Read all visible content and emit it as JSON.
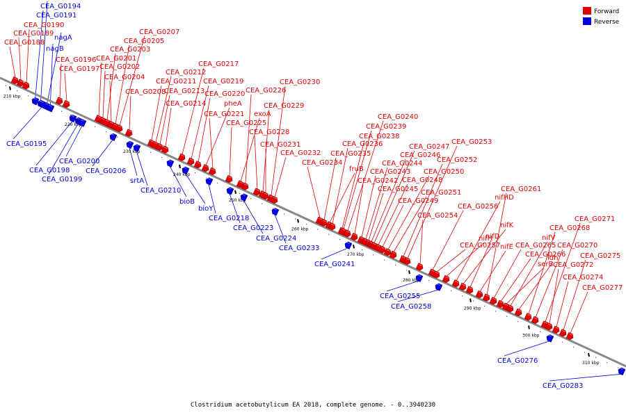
{
  "caption": "Clostridium acetobutylicum EA 2018, complete genome. - 0..3940230",
  "legend": [
    {
      "label": "Forward",
      "color": "#e00000"
    },
    {
      "label": "Reverse",
      "color": "#0000e0"
    }
  ],
  "colors": {
    "forward": "#e00000",
    "reverse": "#0000e0",
    "backbone": "#888888"
  },
  "tick_labels": [
    "210 kbp",
    "220 kbp",
    "230 kbp",
    "240 kbp",
    "250 kbp",
    "260 kbp",
    "270 kbp",
    "280 kbp",
    "290 kbp",
    "300 kbp",
    "310 kbp"
  ],
  "genes": [
    {
      "name": "CEA_G0188",
      "strand": "forward"
    },
    {
      "name": "CEA_G0189",
      "strand": "forward"
    },
    {
      "name": "CEA_G0190",
      "strand": "forward"
    },
    {
      "name": "CEA_G0191",
      "strand": "reverse"
    },
    {
      "name": "CEA_G0194",
      "strand": "reverse"
    },
    {
      "name": "nagA",
      "strand": "reverse"
    },
    {
      "name": "nagB",
      "strand": "reverse"
    },
    {
      "name": "CEA_G0195",
      "strand": "reverse"
    },
    {
      "name": "CEA_G0196",
      "strand": "forward"
    },
    {
      "name": "CEA_G0197",
      "strand": "forward"
    },
    {
      "name": "CEA_G0198",
      "strand": "reverse"
    },
    {
      "name": "CEA_G0199",
      "strand": "reverse"
    },
    {
      "name": "CEA_G0200",
      "strand": "reverse"
    },
    {
      "name": "CEA_G0201",
      "strand": "forward"
    },
    {
      "name": "CEA_G0202",
      "strand": "forward"
    },
    {
      "name": "CEA_G0203",
      "strand": "forward"
    },
    {
      "name": "CEA_G0204",
      "strand": "forward"
    },
    {
      "name": "CEA_G0205",
      "strand": "forward"
    },
    {
      "name": "CEA_G0206",
      "strand": "reverse"
    },
    {
      "name": "CEA_G0207",
      "strand": "forward"
    },
    {
      "name": "CEA_G0208",
      "strand": "forward"
    },
    {
      "name": "srtA",
      "strand": "reverse"
    },
    {
      "name": "CEA_G0210",
      "strand": "reverse"
    },
    {
      "name": "CEA_G0211",
      "strand": "forward"
    },
    {
      "name": "CEA_G0212",
      "strand": "forward"
    },
    {
      "name": "CEA_G0213",
      "strand": "forward"
    },
    {
      "name": "CEA_G0214",
      "strand": "forward"
    },
    {
      "name": "bioB",
      "strand": "reverse"
    },
    {
      "name": "bioY",
      "strand": "reverse"
    },
    {
      "name": "CEA_G0217",
      "strand": "forward"
    },
    {
      "name": "CEA_G0218",
      "strand": "reverse"
    },
    {
      "name": "CEA_G0219",
      "strand": "forward"
    },
    {
      "name": "CEA_G0220",
      "strand": "forward"
    },
    {
      "name": "pheA",
      "strand": "forward"
    },
    {
      "name": "CEA_G0221",
      "strand": "forward"
    },
    {
      "name": "CEA_G0223",
      "strand": "reverse"
    },
    {
      "name": "CEA_G0224",
      "strand": "reverse"
    },
    {
      "name": "CEA_G0225",
      "strand": "forward"
    },
    {
      "name": "exoA",
      "strand": "forward"
    },
    {
      "name": "CEA_G0226",
      "strand": "forward"
    },
    {
      "name": "CEA_G0228",
      "strand": "forward"
    },
    {
      "name": "CEA_G0229",
      "strand": "forward"
    },
    {
      "name": "CEA_G0230",
      "strand": "forward"
    },
    {
      "name": "CEA_G0231",
      "strand": "forward"
    },
    {
      "name": "CEA_G0232",
      "strand": "forward"
    },
    {
      "name": "CEA_G0233",
      "strand": "reverse"
    },
    {
      "name": "CEA_G0234",
      "strand": "forward"
    },
    {
      "name": "CEA_G0235",
      "strand": "forward"
    },
    {
      "name": "fruB",
      "strand": "forward"
    },
    {
      "name": "CEA_G0236",
      "strand": "forward"
    },
    {
      "name": "CEA_G0238",
      "strand": "forward"
    },
    {
      "name": "CEA_G0239",
      "strand": "forward"
    },
    {
      "name": "CEA_G0240",
      "strand": "forward"
    },
    {
      "name": "CEA_G0241",
      "strand": "reverse"
    },
    {
      "name": "CEA_G0242",
      "strand": "forward"
    },
    {
      "name": "CEA_G0243",
      "strand": "forward"
    },
    {
      "name": "CEA_G0244",
      "strand": "forward"
    },
    {
      "name": "CEA_G0245",
      "strand": "forward"
    },
    {
      "name": "CEA_G0246",
      "strand": "forward"
    },
    {
      "name": "CEA_G0247",
      "strand": "forward"
    },
    {
      "name": "CEA_G0248",
      "strand": "forward"
    },
    {
      "name": "CEA_G0249",
      "strand": "forward"
    },
    {
      "name": "CEA_G0250",
      "strand": "forward"
    },
    {
      "name": "CEA_G0251",
      "strand": "forward"
    },
    {
      "name": "CEA_G0252",
      "strand": "forward"
    },
    {
      "name": "CEA_G0253",
      "strand": "forward"
    },
    {
      "name": "CEA_G0254",
      "strand": "forward"
    },
    {
      "name": "CEA_G0255",
      "strand": "reverse"
    },
    {
      "name": "CEA_G0256",
      "strand": "forward"
    },
    {
      "name": "CEA_G0257",
      "strand": "forward"
    },
    {
      "name": "CEA_G0258",
      "strand": "reverse"
    },
    {
      "name": "nifH",
      "strand": "forward"
    },
    {
      "name": "nifHD",
      "strand": "forward"
    },
    {
      "name": "nifK",
      "strand": "forward"
    },
    {
      "name": "nifD",
      "strand": "forward"
    },
    {
      "name": "nifE",
      "strand": "forward"
    },
    {
      "name": "CEA_G0261",
      "strand": "forward"
    },
    {
      "name": "CEA_G0265",
      "strand": "forward"
    },
    {
      "name": "CEA_G0266",
      "strand": "forward"
    },
    {
      "name": "serB",
      "strand": "forward"
    },
    {
      "name": "nifV",
      "strand": "forward"
    },
    {
      "name": "ldh",
      "strand": "forward"
    },
    {
      "name": "CEA_G0268",
      "strand": "forward"
    },
    {
      "name": "CEA_G0270",
      "strand": "forward"
    },
    {
      "name": "CEA_G0271",
      "strand": "forward"
    },
    {
      "name": "CEA_G0272",
      "strand": "forward"
    },
    {
      "name": "CEA_G0274",
      "strand": "forward"
    },
    {
      "name": "CEA_G0275",
      "strand": "forward"
    },
    {
      "name": "CEA_G0276",
      "strand": "reverse"
    },
    {
      "name": "CEA_G0277",
      "strand": "forward"
    },
    {
      "name": "CEA_G0283",
      "strand": "reverse"
    }
  ]
}
